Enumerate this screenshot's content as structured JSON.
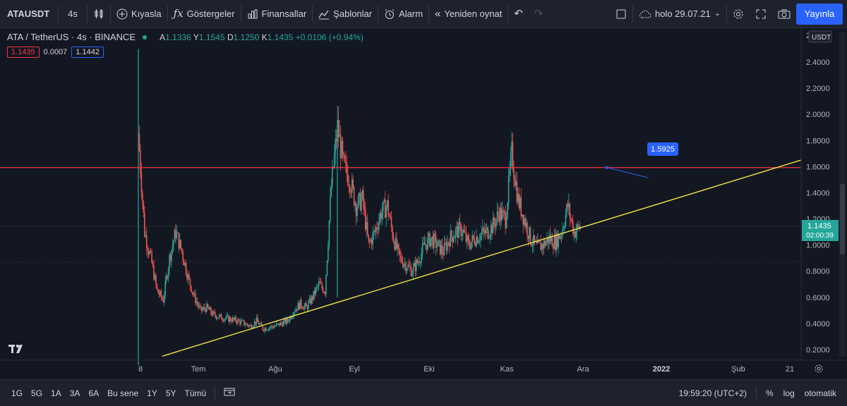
{
  "toolbar": {
    "symbol": "ATAUSDT",
    "interval": "4s",
    "compare": "Kıyasla",
    "indicators": "Göstergeler",
    "financials": "Finansallar",
    "templates": "Şablonlar",
    "alarm": "Alarm",
    "replay": "Yeniden oynat",
    "layout_name": "holo 29.07.21",
    "publish": "Yayınla"
  },
  "legend": {
    "title": "ATA / TetherUS · 4s · BINANCE",
    "o_label": "A",
    "o": "1.1336",
    "h_label": "Y",
    "h": "1.1545",
    "l_label": "D",
    "l": "1.1250",
    "c_label": "K",
    "c": "1.1435",
    "change": "+0.0106 (+0.94%)",
    "bid": "1.1435",
    "spread": "0.0007",
    "ask": "1.1442"
  },
  "price_axis": {
    "currency": "USDT",
    "top_label": "2",
    "ticks": [
      "2.4000",
      "2.2000",
      "2.0000",
      "1.8000",
      "1.6000",
      "1.4000",
      "1.2000",
      "1.0000",
      "0.8000",
      "0.6000",
      "0.4000",
      "0.2000"
    ],
    "last_price": "1.1435",
    "countdown": "02:00:39",
    "current_price_value": 1.1435,
    "horizontal_line_value": 1.5925
  },
  "time_axis": {
    "labels": [
      {
        "text": "8",
        "bold": false
      },
      {
        "text": "Tem",
        "bold": false
      },
      {
        "text": "Ağu",
        "bold": false
      },
      {
        "text": "Eyl",
        "bold": false
      },
      {
        "text": "Eki",
        "bold": false
      },
      {
        "text": "Kas",
        "bold": false
      },
      {
        "text": "Ara",
        "bold": false
      },
      {
        "text": "2022",
        "bold": true
      },
      {
        "text": "Şub",
        "bold": false
      },
      {
        "text": "21",
        "bold": false
      }
    ]
  },
  "annotation": {
    "label": "1.5925"
  },
  "chart_data": {
    "type": "line",
    "title": "",
    "xlabel": "",
    "ylabel": "",
    "ylim": [
      0.1,
      2.5
    ],
    "series": [
      {
        "values": [
          1.85,
          1.1,
          0.9,
          0.65,
          0.58,
          0.9,
          1.1,
          0.95,
          0.75,
          0.6,
          0.5,
          0.52,
          0.47,
          0.45,
          0.44,
          0.43,
          0.42,
          0.4,
          0.38,
          0.42,
          0.36,
          0.37,
          0.38,
          0.4,
          0.42,
          0.5,
          0.55,
          0.52,
          0.6,
          0.7,
          0.65,
          1.45,
          1.9,
          1.6,
          1.5,
          1.3,
          1.35,
          1.0,
          1.1,
          1.25,
          1.3,
          1.05,
          0.9,
          0.85,
          0.8,
          0.88,
          1.0,
          1.05,
          1.0,
          0.95,
          1.05,
          1.1,
          1.12,
          1.0,
          1.05,
          1.08,
          1.1,
          1.15,
          1.25,
          1.2,
          1.7,
          1.35,
          1.2,
          1.05,
          0.98,
          1.0,
          1.05,
          1.02,
          1.1,
          1.3,
          1.1,
          1.14
        ]
      }
    ],
    "trendline": {
      "from": {
        "x": "Haziran sonu",
        "y": 0.15
      },
      "to": {
        "x": "Şubat sonu",
        "y": 1.65
      }
    },
    "horizontal_line": 1.5925
  },
  "bottombar": {
    "ranges": [
      "1G",
      "5G",
      "1A",
      "3A",
      "6A",
      "Bu sene",
      "1Y",
      "5Y",
      "Tümü"
    ],
    "clock": "19:59:20 (UTC+2)",
    "percent": "%",
    "log": "log",
    "auto": "otomatik"
  },
  "colors": {
    "background": "#131722",
    "up": "#26a69a",
    "down": "#ef5350",
    "trendline": "#f0e442",
    "hline": "#f23645",
    "accent": "#2962ff"
  }
}
